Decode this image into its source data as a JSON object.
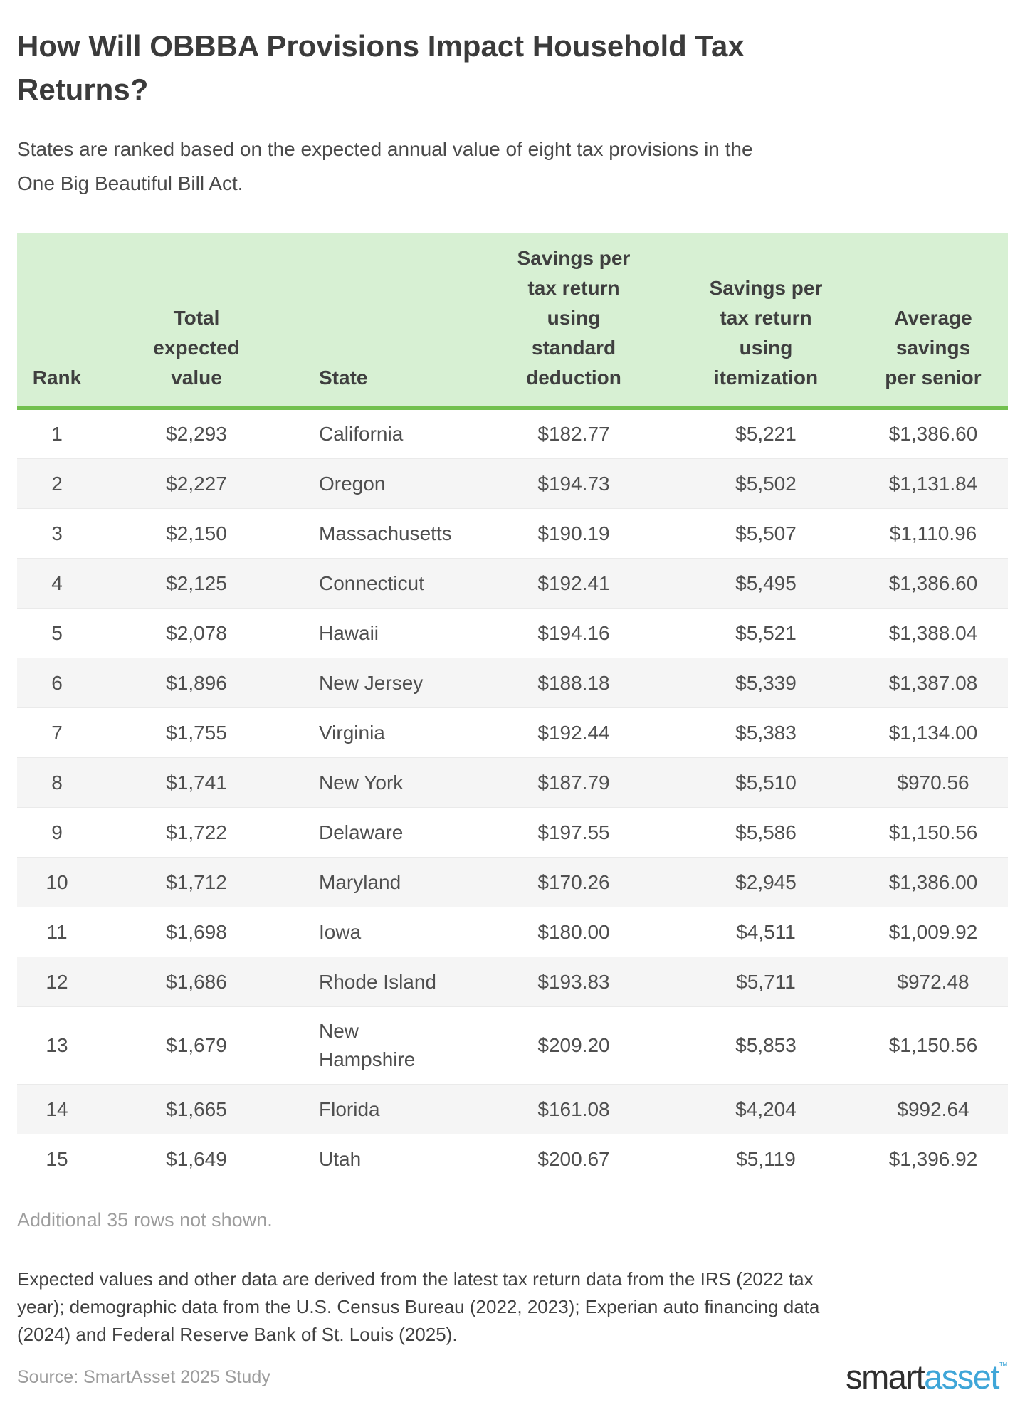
{
  "header": {
    "title": "How Will OBBBA Provisions Impact Household Tax Returns?",
    "subtitle": "States are ranked based on the expected annual value of eight tax provisions in the One Big Beautiful Bill Act."
  },
  "chart_data": {
    "type": "table",
    "columns": [
      "Rank",
      "Total expected value",
      "State",
      "Savings per tax return using standard deduction",
      "Savings per tax return using itemization",
      "Average savings per senior"
    ],
    "rows": [
      [
        "1",
        "$2,293",
        "California",
        "$182.77",
        "$5,221",
        "$1,386.60"
      ],
      [
        "2",
        "$2,227",
        "Oregon",
        "$194.73",
        "$5,502",
        "$1,131.84"
      ],
      [
        "3",
        "$2,150",
        "Massachusetts",
        "$190.19",
        "$5,507",
        "$1,110.96"
      ],
      [
        "4",
        "$2,125",
        "Connecticut",
        "$192.41",
        "$5,495",
        "$1,386.60"
      ],
      [
        "5",
        "$2,078",
        "Hawaii",
        "$194.16",
        "$5,521",
        "$1,388.04"
      ],
      [
        "6",
        "$1,896",
        "New Jersey",
        "$188.18",
        "$5,339",
        "$1,387.08"
      ],
      [
        "7",
        "$1,755",
        "Virginia",
        "$192.44",
        "$5,383",
        "$1,134.00"
      ],
      [
        "8",
        "$1,741",
        "New York",
        "$187.79",
        "$5,510",
        "$970.56"
      ],
      [
        "9",
        "$1,722",
        "Delaware",
        "$197.55",
        "$5,586",
        "$1,150.56"
      ],
      [
        "10",
        "$1,712",
        "Maryland",
        "$170.26",
        "$2,945",
        "$1,386.00"
      ],
      [
        "11",
        "$1,698",
        "Iowa",
        "$180.00",
        "$4,511",
        "$1,009.92"
      ],
      [
        "12",
        "$1,686",
        "Rhode Island",
        "$193.83",
        "$5,711",
        "$972.48"
      ],
      [
        "13",
        "$1,679",
        "New Hampshire",
        "$209.20",
        "$5,853",
        "$1,150.56"
      ],
      [
        "14",
        "$1,665",
        "Florida",
        "$161.08",
        "$4,204",
        "$992.64"
      ],
      [
        "15",
        "$1,649",
        "Utah",
        "$200.67",
        "$5,119",
        "$1,396.92"
      ]
    ],
    "title": "How Will OBBBA Provisions Impact Household Tax Returns?",
    "legend_position": "none",
    "grid": "row-stripes"
  },
  "footer": {
    "additional_note": "Additional 35 rows not shown.",
    "methodology": "Expected values and other data are derived from the latest tax return data from the IRS (2022 tax year); demographic data from the U.S. Census Bureau (2022, 2023); Experian auto financing data (2024) and Federal Reserve Bank of St. Louis (2025).",
    "source": "Source: SmartAsset 2025 Study",
    "logo_smart": "smart",
    "logo_asset": "asset",
    "logo_tm": "™"
  },
  "colors": {
    "header_green": "#d7f0d3",
    "border_green": "#72c04e",
    "stripe_gray": "#f5f5f5",
    "title_text": "#3b3b3b",
    "muted_text": "#9d9d9d",
    "logo_dark": "#2f2f2f",
    "logo_blue": "#3fa6d8"
  }
}
